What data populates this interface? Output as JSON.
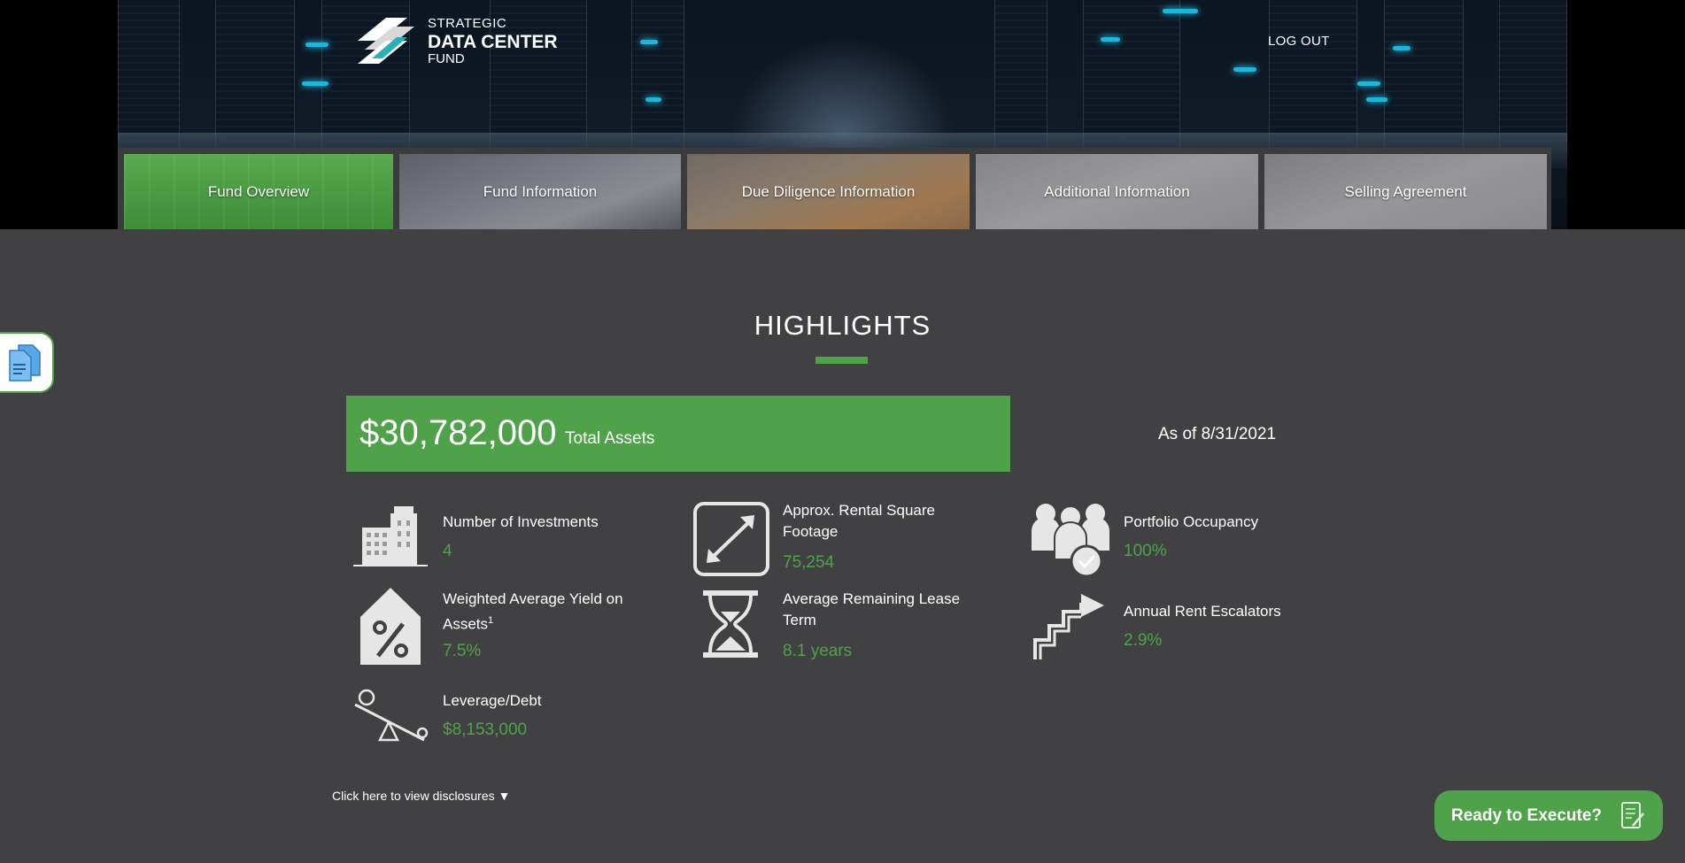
{
  "header": {
    "logo": {
      "line1": "STRATEGIC",
      "line2": "DATA CENTER",
      "line3": "FUND"
    },
    "logout_label": "LOG OUT"
  },
  "nav": {
    "tabs": [
      {
        "label": "Fund Overview",
        "active": true
      },
      {
        "label": "Fund Information"
      },
      {
        "label": "Due Diligence Information"
      },
      {
        "label": "Additional Information"
      },
      {
        "label": "Selling Agreement"
      }
    ]
  },
  "highlights": {
    "title": "HIGHLIGHTS",
    "total_assets_value": "$30,782,000",
    "total_assets_label": "Total Assets",
    "as_of": "As of 8/31/2021",
    "stats": [
      {
        "label": "Number of Investments",
        "value": "4",
        "icon": "buildings-icon"
      },
      {
        "label": "Approx. Rental Square Footage",
        "value": "75,254",
        "icon": "resize-arrows-icon"
      },
      {
        "label": "Portfolio Occupancy",
        "value": "100%",
        "icon": "people-check-icon"
      },
      {
        "label": "Weighted Average Yield on Assets",
        "footnote": "1",
        "value": "7.5%",
        "icon": "house-percent-icon"
      },
      {
        "label": "Average Remaining Lease Term",
        "value": "8.1 years",
        "icon": "hourglass-icon"
      },
      {
        "label": "Annual Rent Escalators",
        "value": "2.9%",
        "icon": "stairs-arrow-icon"
      },
      {
        "label": "Leverage/Debt",
        "value": "$8,153,000",
        "icon": "seesaw-icon"
      }
    ],
    "disclosures_link": "Click here to view disclosures ▼"
  },
  "cta": {
    "label": "Ready to Execute?"
  },
  "colors": {
    "accent": "#4fa24a",
    "background": "#414143"
  }
}
